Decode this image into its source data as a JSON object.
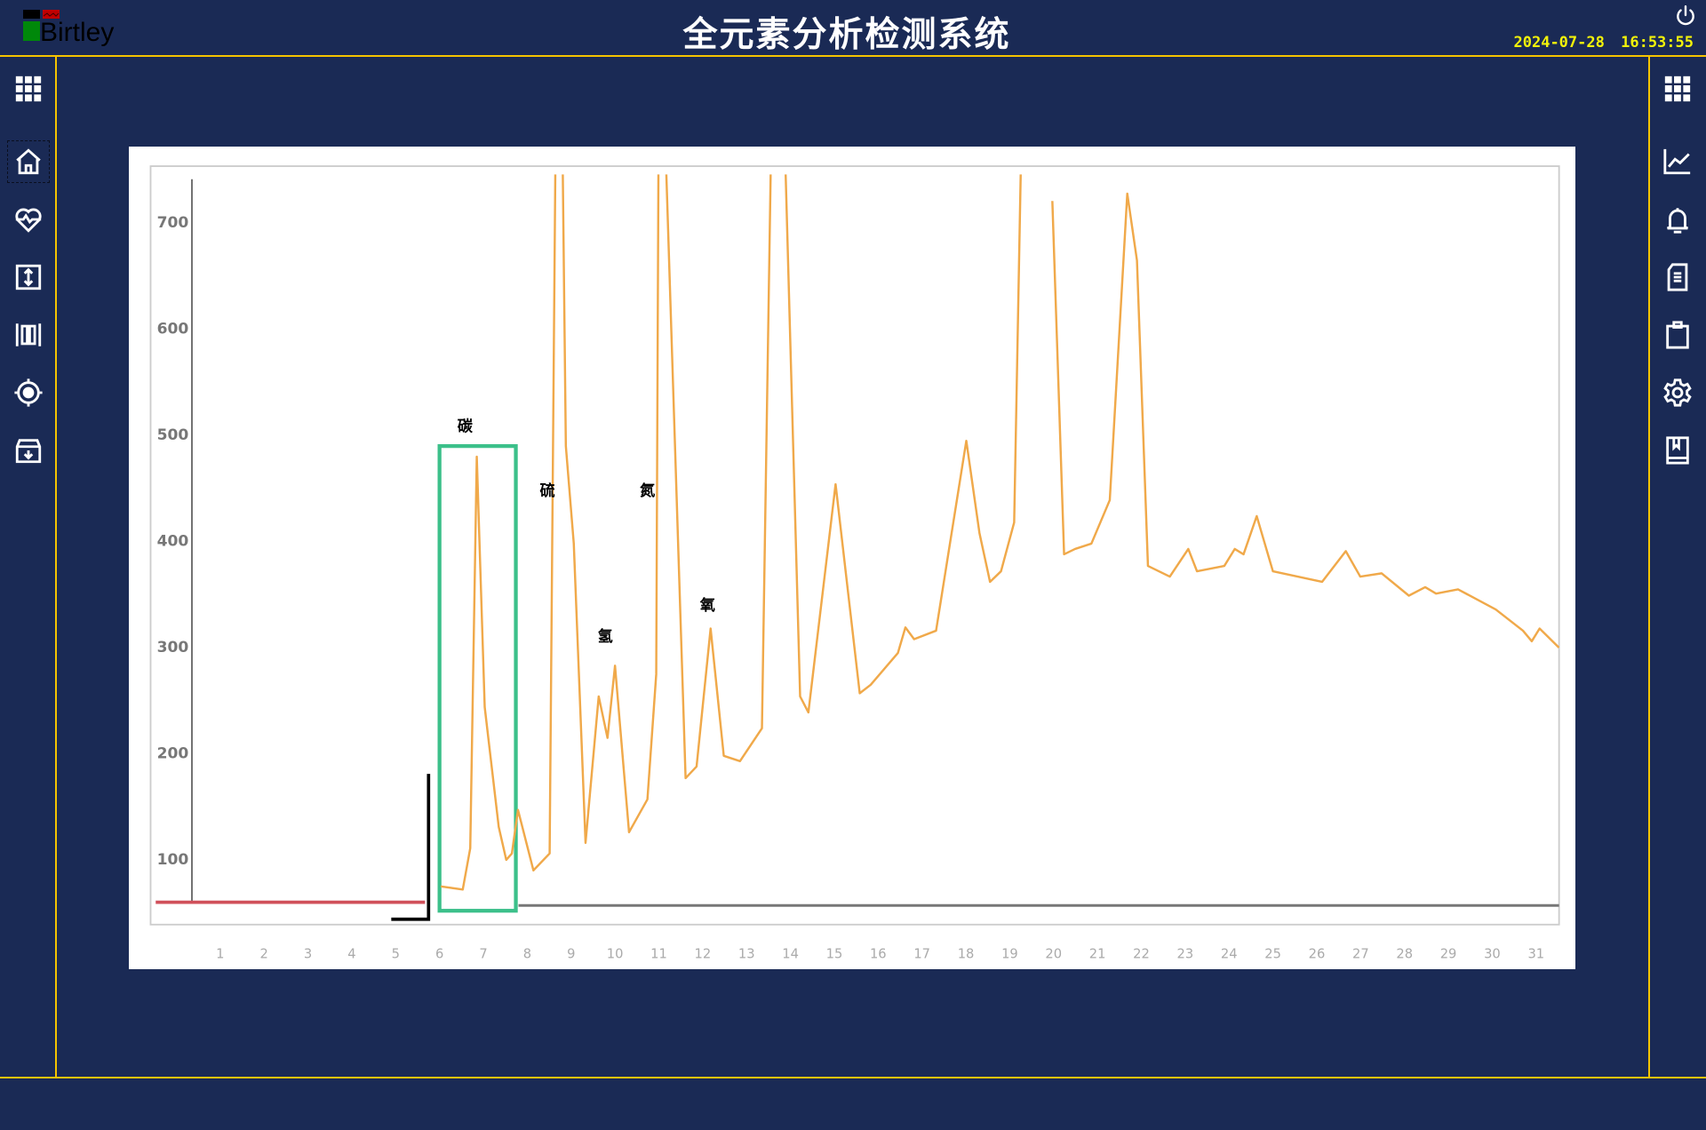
{
  "header": {
    "logo_text": "Birtley",
    "title": "全元素分析检测系统",
    "date": "2024-07-28",
    "time": "16:53:55"
  },
  "icons": {
    "left": [
      "grid-menu-icon",
      "home-icon",
      "heart-pulse-icon",
      "vertical-arrows-icon",
      "barcode-columns-icon",
      "target-icon",
      "archive-download-icon"
    ],
    "right": [
      "grid-menu-icon",
      "line-chart-icon",
      "bell-icon",
      "document-icon",
      "clipboard-icon",
      "gear-icon",
      "book-icon"
    ],
    "top_right": "power-icon"
  },
  "colors": {
    "background": "#1a2a55",
    "border": "#f5c400",
    "datetime": "#f2f20a",
    "curve": "#f0a94a",
    "highlight_box": "#3cc08a",
    "baseline_red": "#d0505a"
  },
  "chart_data": {
    "type": "line",
    "title": "",
    "xlabel": "",
    "ylabel": "",
    "x_ticks": [
      1,
      2,
      3,
      4,
      5,
      6,
      7,
      8,
      9,
      10,
      11,
      12,
      13,
      14,
      15,
      16,
      17,
      18,
      19,
      20,
      21,
      22,
      23,
      24,
      25,
      26,
      27,
      28,
      29,
      30,
      31
    ],
    "y_ticks": [
      100,
      200,
      300,
      400,
      500,
      600,
      700
    ],
    "xlim": [
      -1.1,
      31.6
    ],
    "ylim": [
      40,
      745
    ],
    "grid": false,
    "baseline_value": 56,
    "series": [
      {
        "points": [
          [
            6.03,
            74
          ],
          [
            6.53,
            71
          ],
          [
            6.7,
            110
          ],
          [
            6.85,
            479
          ],
          [
            7.03,
            243
          ],
          [
            7.35,
            130
          ],
          [
            7.52,
            99
          ],
          [
            7.65,
            105
          ],
          [
            7.79,
            146
          ],
          [
            8.14,
            89
          ],
          [
            8.51,
            105
          ],
          [
            8.64,
            745
          ],
          null,
          [
            8.81,
            745
          ],
          [
            8.88,
            489
          ],
          [
            9.06,
            397
          ],
          [
            9.33,
            115
          ],
          [
            9.63,
            253
          ],
          [
            9.83,
            214
          ],
          [
            10.0,
            282
          ],
          [
            10.32,
            125
          ],
          [
            10.74,
            156
          ],
          [
            10.94,
            274
          ],
          [
            10.99,
            745
          ],
          null,
          [
            11.17,
            745
          ],
          [
            11.61,
            176
          ],
          [
            11.86,
            187
          ],
          [
            12.18,
            317
          ],
          [
            12.48,
            197
          ],
          [
            12.85,
            192
          ],
          [
            13.35,
            223
          ],
          [
            13.55,
            745
          ],
          null,
          [
            13.89,
            745
          ],
          [
            14.22,
            253
          ],
          [
            14.41,
            238
          ],
          [
            15.03,
            453
          ],
          [
            15.58,
            256
          ],
          [
            15.83,
            264
          ],
          [
            16.45,
            294
          ],
          [
            16.62,
            318
          ],
          [
            16.82,
            307
          ],
          [
            17.32,
            315
          ],
          [
            18.01,
            494
          ],
          [
            18.31,
            407
          ],
          [
            18.55,
            361
          ],
          [
            18.8,
            371
          ],
          [
            19.1,
            417
          ],
          [
            19.25,
            745
          ],
          null,
          [
            19.97,
            720
          ],
          [
            20.24,
            387
          ],
          [
            20.49,
            392
          ],
          [
            20.86,
            397
          ],
          [
            21.28,
            438
          ],
          [
            21.68,
            727
          ],
          [
            21.9,
            664
          ],
          [
            22.15,
            376
          ],
          [
            22.65,
            366
          ],
          [
            23.07,
            392
          ],
          [
            23.27,
            371
          ],
          [
            23.89,
            376
          ],
          [
            24.13,
            392
          ],
          [
            24.33,
            387
          ],
          [
            24.63,
            423
          ],
          [
            25.0,
            371
          ],
          [
            26.12,
            361
          ],
          [
            26.66,
            390
          ],
          [
            26.99,
            366
          ],
          [
            27.48,
            369
          ],
          [
            28.1,
            348
          ],
          [
            28.47,
            356
          ],
          [
            28.72,
            350
          ],
          [
            29.22,
            354
          ],
          [
            30.08,
            335
          ],
          [
            30.7,
            315
          ],
          [
            30.9,
            305
          ],
          [
            31.08,
            317
          ],
          [
            31.52,
            299
          ]
        ]
      }
    ],
    "red_segment": {
      "x": [
        -0.47,
        5.67
      ],
      "y": 59
    },
    "highlight": {
      "label": "碳",
      "x": [
        6.0,
        7.74
      ],
      "y": [
        51,
        489
      ]
    },
    "annotations": [
      {
        "text": "碳",
        "x": 6.58,
        "y": 503
      },
      {
        "text": "硫",
        "x": 8.46,
        "y": 442
      },
      {
        "text": "氢",
        "x": 9.78,
        "y": 305
      },
      {
        "text": "氮",
        "x": 10.74,
        "y": 442
      },
      {
        "text": "氧",
        "x": 12.11,
        "y": 334
      }
    ]
  }
}
